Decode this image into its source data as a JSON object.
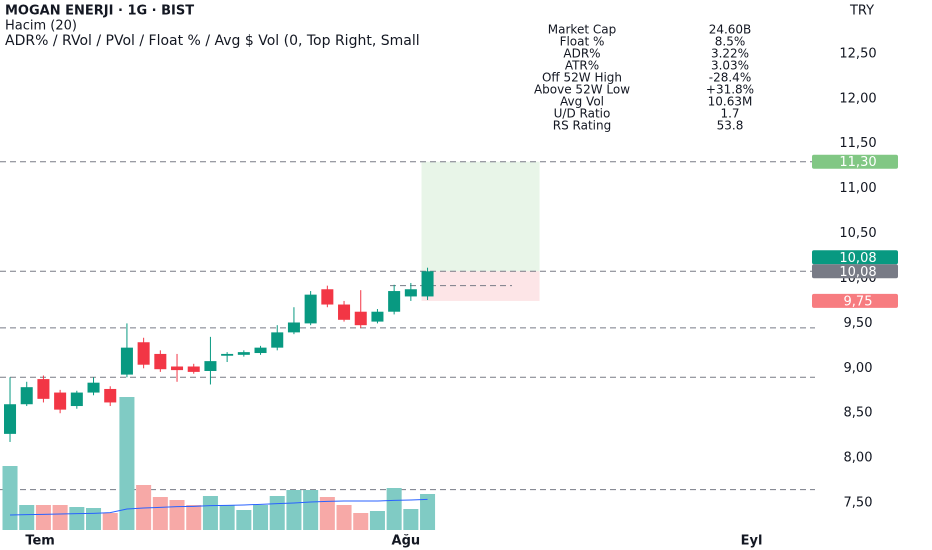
{
  "header": {
    "title": "MOGAN ENERJI · 1G · BIST",
    "volume_label": "Hacim (20)",
    "indicator": "ADR% / RVol / PVol / Float % / Avg $ Vol (0, Top Right, Small",
    "currency": "TRY"
  },
  "stats": [
    [
      "Market Cap",
      "24.60B"
    ],
    [
      "Float %",
      "8.5%"
    ],
    [
      "ADR%",
      "3.22%"
    ],
    [
      "ATR%",
      "3.03%"
    ],
    [
      "Off 52W High",
      "-28.4%"
    ],
    [
      "Above 52W Low",
      "+31.8%"
    ],
    [
      "Avg Vol",
      "10.63M"
    ],
    [
      "U/D Ratio",
      "1.7"
    ],
    [
      "RS Rating",
      "53.8"
    ]
  ],
  "chart_data": {
    "type": "candlestick",
    "categories": [
      null,
      null,
      null,
      null,
      null,
      null,
      null,
      null,
      null,
      null,
      null,
      null,
      null,
      null,
      null,
      null,
      null,
      null,
      null,
      null,
      null,
      null,
      null,
      null,
      null,
      null
    ],
    "open": [
      8.27,
      8.6,
      8.88,
      8.73,
      8.58,
      8.73,
      8.77,
      8.93,
      9.29,
      9.16,
      9.02,
      9.02,
      8.97,
      9.14,
      9.15,
      9.17,
      9.23,
      9.4,
      9.5,
      9.88,
      9.71,
      9.63,
      9.52,
      9.63,
      9.8,
      9.8
    ],
    "high": [
      8.9,
      8.85,
      8.92,
      8.76,
      8.75,
      8.9,
      8.8,
      9.5,
      9.34,
      9.2,
      9.16,
      9.05,
      9.35,
      9.18,
      9.2,
      9.25,
      9.48,
      9.68,
      9.86,
      9.92,
      9.75,
      9.87,
      9.66,
      9.93,
      9.95,
      10.12
    ],
    "low": [
      8.18,
      8.58,
      8.62,
      8.5,
      8.55,
      8.7,
      8.58,
      8.9,
      9.0,
      8.96,
      8.85,
      8.94,
      8.82,
      9.07,
      9.13,
      9.15,
      9.2,
      9.38,
      9.48,
      9.68,
      9.52,
      9.45,
      9.5,
      9.6,
      9.75,
      9.76
    ],
    "close": [
      8.6,
      8.79,
      8.66,
      8.54,
      8.73,
      8.84,
      8.62,
      9.23,
      9.04,
      8.99,
      8.98,
      8.96,
      9.08,
      9.16,
      9.18,
      9.23,
      9.4,
      9.51,
      9.82,
      9.71,
      9.54,
      9.48,
      9.63,
      9.86,
      9.88,
      10.08
    ],
    "up_color": "#089981",
    "down_color": "#f23645",
    "volume": [
      19.2,
      7.5,
      7.5,
      7.5,
      6.9,
      6.6,
      5.1,
      39.9,
      13.5,
      9.9,
      9.0,
      7.5,
      10.2,
      7.5,
      6.0,
      7.5,
      10.2,
      12.0,
      12.0,
      9.9,
      7.5,
      5.1,
      5.7,
      12.6,
      6.3,
      10.8
    ],
    "volume_ma": [
      4.5,
      4.6,
      4.7,
      4.8,
      4.9,
      5.0,
      5.2,
      6.3,
      6.6,
      6.8,
      7.0,
      7.1,
      7.3,
      7.4,
      7.5,
      7.7,
      7.9,
      8.1,
      8.4,
      8.6,
      8.7,
      8.7,
      8.7,
      8.9,
      9.0,
      9.2
    ],
    "volume_up_color": "#80cbc4",
    "volume_down_color": "#f7a9a7",
    "volume_ma_color": "#2962ff",
    "vlim": [
      0,
      45
    ],
    "ylim": [
      7.2,
      13.1
    ],
    "yticks": [
      {
        "value": 7.5,
        "label": "7,50"
      },
      {
        "value": 8.0,
        "label": "8,00"
      },
      {
        "value": 8.5,
        "label": "8,50"
      },
      {
        "value": 9.0,
        "label": "9,00"
      },
      {
        "value": 9.5,
        "label": "9,50"
      },
      {
        "value": 10.0,
        "label": "10,00"
      },
      {
        "value": 10.5,
        "label": "10,50"
      },
      {
        "value": 11.0,
        "label": "11,00"
      },
      {
        "value": 11.5,
        "label": "11,50"
      },
      {
        "value": 12.0,
        "label": "12,00"
      },
      {
        "value": 12.5,
        "label": "12,50"
      }
    ],
    "xlim": [
      -0.6,
      47.9
    ],
    "xticks": [
      {
        "value": 1.8,
        "label": "Tem"
      },
      {
        "value": 23.7,
        "label": "Ağu"
      },
      {
        "value": 44.4,
        "label": "Eyl"
      }
    ],
    "levels": [
      11.3,
      10.08,
      9.45,
      8.9,
      7.65
    ],
    "short_level": 9.92,
    "position": {
      "target": 11.3,
      "entry": 10.08,
      "stop": 9.75
    },
    "price_labels": [
      {
        "value": 11.3,
        "label": "11,30",
        "color": "#81c784"
      },
      {
        "value": 10.08,
        "label": "10,08",
        "color": "#089981"
      },
      {
        "value": 10.08,
        "label": "10,08",
        "color": "#787b86"
      },
      {
        "value": 9.75,
        "label": "9,75",
        "color": "#f77c80"
      }
    ]
  }
}
